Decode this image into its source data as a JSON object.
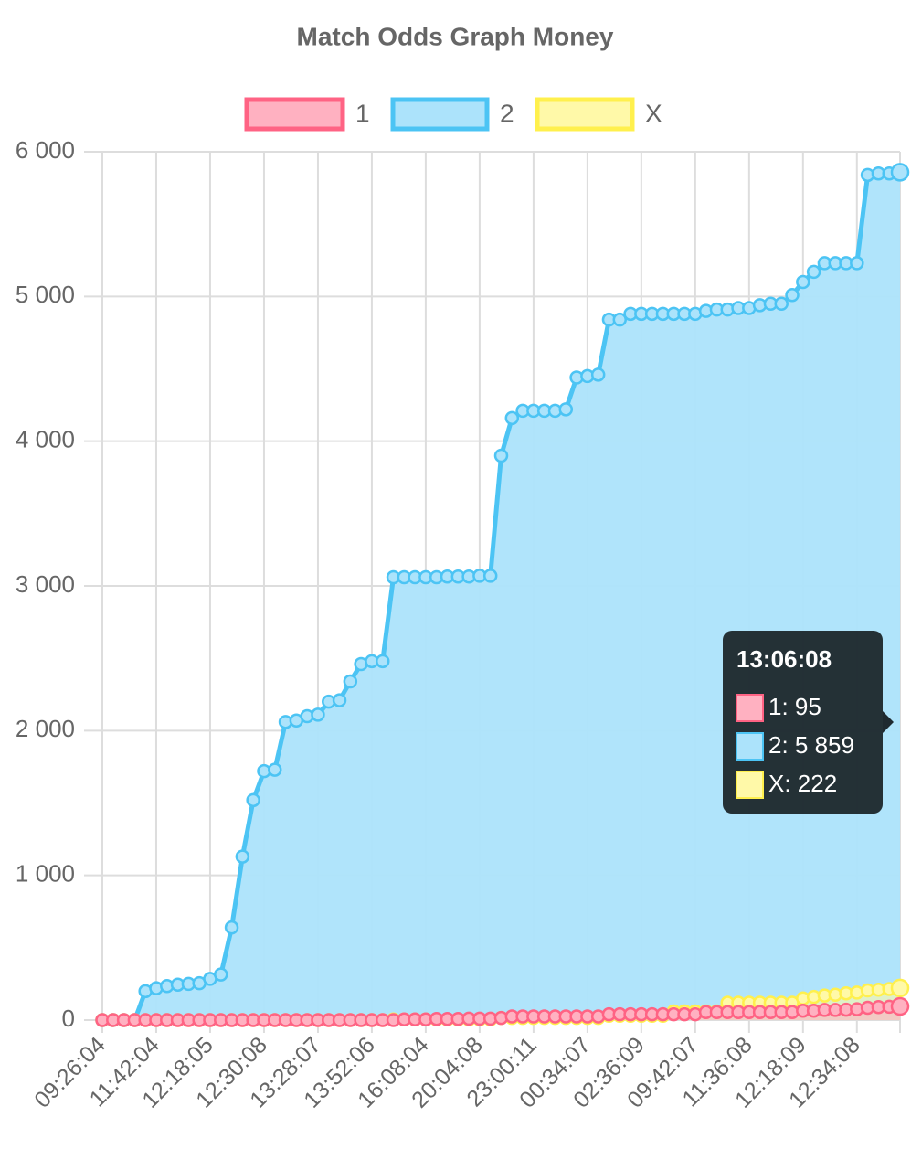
{
  "chart_data": {
    "type": "line",
    "title": "Match Odds Graph Money",
    "categories": [
      "09:26:04",
      null,
      null,
      null,
      null,
      "11:42:04",
      null,
      null,
      null,
      null,
      "12:18:05",
      null,
      null,
      null,
      null,
      "12:30:08",
      null,
      null,
      null,
      null,
      "13:28:07",
      null,
      null,
      null,
      null,
      "13:52:06",
      null,
      null,
      null,
      null,
      "16:08:04",
      null,
      null,
      null,
      null,
      "20:04:08",
      null,
      null,
      null,
      null,
      "23:00:11",
      null,
      null,
      null,
      null,
      "00:34:07",
      null,
      null,
      null,
      null,
      "02:36:09",
      null,
      null,
      null,
      null,
      "09:42:07",
      null,
      null,
      null,
      null,
      "11:36:08",
      null,
      null,
      null,
      null,
      "12:18:09",
      null,
      null,
      null,
      null,
      "12:34:08",
      null,
      null,
      null,
      null
    ],
    "series": [
      {
        "name": "1",
        "color": "#ff6384",
        "fill": "#ffb1c1",
        "values": [
          0,
          0,
          0,
          0,
          0,
          0,
          0,
          0,
          0,
          0,
          0,
          0,
          0,
          0,
          0,
          0,
          0,
          0,
          0,
          0,
          0,
          0,
          0,
          0,
          0,
          0,
          0,
          0,
          5,
          5,
          5,
          8,
          8,
          8,
          10,
          10,
          10,
          15,
          25,
          25,
          25,
          25,
          25,
          25,
          25,
          25,
          25,
          40,
          40,
          40,
          40,
          40,
          40,
          40,
          40,
          40,
          55,
          55,
          55,
          55,
          55,
          55,
          55,
          55,
          55,
          65,
          65,
          70,
          70,
          72,
          75,
          85,
          90,
          92,
          95
        ]
      },
      {
        "name": "2",
        "color": "#4cc4f4",
        "fill": "#ace3fb",
        "values": [
          0,
          0,
          0,
          0,
          200,
          220,
          235,
          245,
          250,
          255,
          285,
          315,
          640,
          1130,
          1520,
          1720,
          1730,
          2060,
          2070,
          2100,
          2110,
          2200,
          2210,
          2340,
          2460,
          2480,
          2480,
          3060,
          3060,
          3060,
          3060,
          3060,
          3065,
          3065,
          3065,
          3070,
          3070,
          3900,
          4160,
          4210,
          4210,
          4210,
          4210,
          4220,
          4440,
          4450,
          4460,
          4840,
          4840,
          4880,
          4880,
          4880,
          4880,
          4880,
          4880,
          4880,
          4900,
          4910,
          4910,
          4920,
          4920,
          4940,
          4950,
          4950,
          5010,
          5100,
          5170,
          5230,
          5230,
          5230,
          5230,
          5840,
          5850,
          5850,
          5859
        ]
      },
      {
        "name": "X",
        "color": "#fff04d",
        "fill": "#fff9a8",
        "values": [
          0,
          0,
          0,
          0,
          0,
          0,
          0,
          0,
          0,
          0,
          0,
          0,
          0,
          0,
          0,
          0,
          0,
          0,
          0,
          0,
          0,
          0,
          0,
          0,
          0,
          0,
          0,
          5,
          5,
          5,
          5,
          5,
          5,
          5,
          5,
          5,
          5,
          15,
          15,
          15,
          15,
          15,
          15,
          15,
          15,
          15,
          15,
          30,
          30,
          30,
          30,
          30,
          30,
          60,
          60,
          60,
          60,
          60,
          120,
          120,
          120,
          120,
          120,
          120,
          120,
          150,
          160,
          170,
          175,
          185,
          190,
          205,
          210,
          215,
          222
        ]
      }
    ],
    "ylim": [
      0,
      6000
    ],
    "yticks": [
      {
        "value": 0,
        "label": "0"
      },
      {
        "value": 1000,
        "label": "1 000"
      },
      {
        "value": 2000,
        "label": "2 000"
      },
      {
        "value": 3000,
        "label": "3 000"
      },
      {
        "value": 4000,
        "label": "4 000"
      },
      {
        "value": 5000,
        "label": "5 000"
      },
      {
        "value": 6000,
        "label": "6 000"
      }
    ],
    "grid": true,
    "legend": "top",
    "tooltip": {
      "title": "13:06:08",
      "items": [
        "1: 95",
        "2: 5 859",
        "X: 222"
      ]
    }
  }
}
